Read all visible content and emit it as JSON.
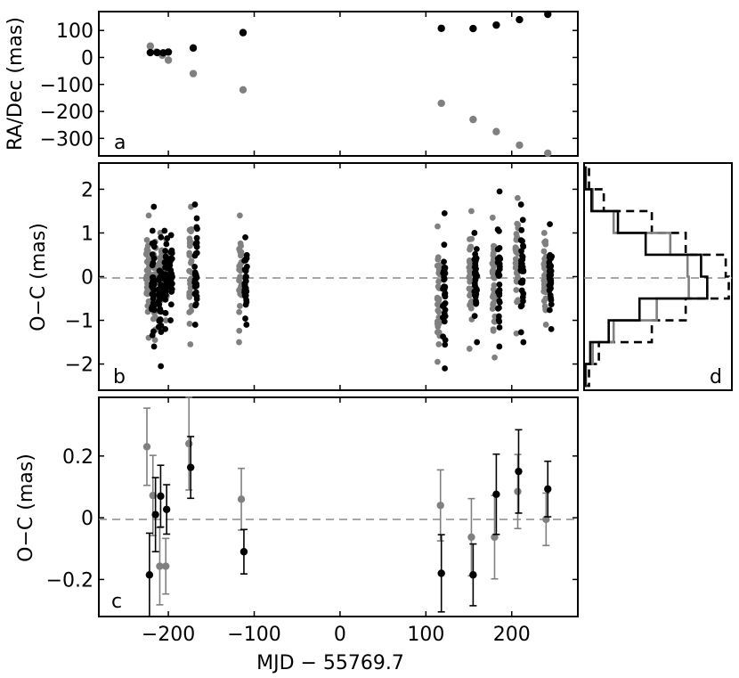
{
  "chart_data": [
    {
      "panel": "a",
      "type": "scatter",
      "title": "",
      "xlabel": "",
      "ylabel": "RA/Dec (mas)",
      "panel_label": "a",
      "xlim": [
        -281,
        277
      ],
      "ylim": [
        -365,
        170
      ],
      "xticks": [
        -200,
        -100,
        0,
        100,
        200
      ],
      "yticks": [
        100,
        0,
        -100,
        -200,
        -300
      ],
      "grid": false,
      "series": [
        {
          "color": "#000000",
          "x": [
            -221,
            -213,
            -206,
            -200,
            -171,
            -113,
            118,
            155,
            182,
            209,
            242
          ],
          "y": [
            18,
            18,
            17,
            20,
            35,
            92,
            108,
            107,
            120,
            140,
            170
          ]
        },
        {
          "color": "#808080",
          "x": [
            -221,
            -214,
            -207,
            -200,
            -171,
            -113,
            118,
            155,
            182,
            209,
            242
          ],
          "y": [
            42,
            20,
            8,
            -10,
            -60,
            -120,
            -170,
            -230,
            -275,
            -325,
            -360
          ]
        }
      ]
    },
    {
      "panel": "b",
      "type": "scatter",
      "title": "",
      "xlabel": "",
      "ylabel": "O−C (mas)",
      "panel_label": "b",
      "xlim": [
        -281,
        277
      ],
      "ylim": [
        -2.6,
        2.6
      ],
      "xticks": [
        -200,
        -100,
        0,
        100,
        200
      ],
      "yticks": [
        2,
        1,
        0,
        -1,
        -2
      ],
      "reference_line": 0,
      "grid": false,
      "epochs": [
        -221,
        -213,
        -206,
        -200,
        -171,
        -113,
        118,
        155,
        182,
        209,
        242
      ],
      "series": [
        {
          "color": "#000000",
          "ymin": [
            -1.6,
            -2.05,
            -1.2,
            -1.0,
            -1.1,
            -1.1,
            -2.1,
            -1.5,
            -1.6,
            -1.5,
            -1.2
          ],
          "ymax": [
            1.6,
            0.9,
            1.05,
            0.95,
            1.65,
            0.9,
            1.45,
            1.0,
            1.95,
            1.65,
            1.2
          ]
        },
        {
          "color": "#808080",
          "ymin": [
            -1.4,
            -1.45,
            -1.2,
            -1.0,
            -1.55,
            -1.5,
            -1.95,
            -1.65,
            -1.85,
            -1.3,
            -1.1
          ],
          "ymax": [
            1.4,
            0.8,
            1.0,
            0.85,
            1.6,
            1.4,
            1.15,
            1.5,
            1.35,
            1.8,
            1.0
          ]
        }
      ]
    },
    {
      "panel": "c",
      "type": "scatter",
      "title": "",
      "xlabel": "MJD − 55769.7",
      "ylabel": "O−C (mas)",
      "panel_label": "c",
      "xlim": [
        -281,
        277
      ],
      "ylim": [
        -0.32,
        0.39
      ],
      "xticks": [
        -200,
        -100,
        0,
        100,
        200
      ],
      "yticks": [
        0.2,
        0,
        -0.2
      ],
      "reference_line": 0,
      "grid": false,
      "series": [
        {
          "color": "#000000",
          "x": [
            -222,
            -215,
            -209,
            -202,
            -174,
            -112,
            118,
            155,
            182,
            208,
            242
          ],
          "y": [
            -0.185,
            0.01,
            0.07,
            0.027,
            0.163,
            -0.11,
            -0.18,
            -0.185,
            0.076,
            0.15,
            0.093
          ],
          "err": [
            0.135,
            0.12,
            0.1,
            0.08,
            0.1,
            0.072,
            0.125,
            0.1,
            0.13,
            0.135,
            0.09
          ]
        },
        {
          "color": "#808080",
          "x": [
            -225,
            -218,
            -210,
            -203,
            -176,
            -115,
            117,
            153,
            180,
            207,
            240
          ],
          "y": [
            0.23,
            0.072,
            -0.157,
            -0.157,
            0.24,
            0.06,
            0.04,
            -0.063,
            -0.063,
            0.085,
            -0.005
          ],
          "err": [
            0.125,
            0.13,
            0.125,
            0.09,
            0.15,
            0.1,
            0.115,
            0.125,
            0.135,
            0.12,
            0.085
          ]
        }
      ]
    },
    {
      "panel": "d",
      "type": "histogram",
      "title": "",
      "panel_label": "d",
      "orientation": "horizontal",
      "ylim": [
        -2.6,
        2.6
      ],
      "bin_edges": [
        -2.5,
        -2.0,
        -1.5,
        -1.0,
        -0.5,
        0.0,
        0.5,
        1.0,
        1.5,
        2.0,
        2.5
      ],
      "xmax": 240,
      "series": [
        {
          "style": "solid",
          "color": "#000000",
          "counts": [
            2,
            10,
            40,
            90,
            200,
            190,
            100,
            55,
            12,
            2
          ]
        },
        {
          "style": "solid",
          "color": "#808080",
          "counts": [
            3,
            14,
            48,
            118,
            170,
            168,
            140,
            48,
            14,
            3
          ]
        },
        {
          "style": "dashed",
          "color": "#000000",
          "counts": [
            8,
            24,
            110,
            165,
            235,
            230,
            165,
            110,
            32,
            8
          ]
        }
      ]
    }
  ]
}
